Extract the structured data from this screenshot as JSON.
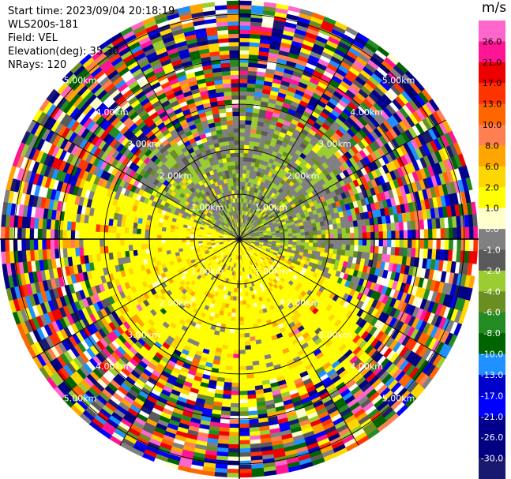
{
  "header": {
    "start_time": "Start time: 2023/09/04 20:18:19",
    "instrument": "WLS200s-181",
    "field": "Field: VEL",
    "elevation": "Elevation(deg): 35.30",
    "nrays": "NRays: 120"
  },
  "chart_data": {
    "type": "heatmap",
    "projection": "polar-ppi",
    "field": "VEL",
    "units": "m/s",
    "n_rays": 120,
    "elevation_deg": 35.3,
    "range_rings_km": [
      1,
      2,
      3,
      4,
      5
    ],
    "range_ring_labels": [
      "1.00km",
      "2.00km",
      "3.00km",
      "4.00km",
      "5.00km"
    ],
    "colorbar": {
      "title": "m/s",
      "ticks": [
        "26.0",
        "21.0",
        "17.0",
        "13.0",
        "10.0",
        "8.0",
        "6.0",
        "2.0",
        "1.0",
        "0.0",
        "-1.0",
        "-2.0",
        "-4.0",
        "-6.0",
        "-8.0",
        "-10.0",
        "-13.0",
        "-17.0",
        "-21.0",
        "-26.0",
        "-30.0"
      ],
      "colors": [
        "#ff66cc",
        "#ff1493",
        "#ee0000",
        "#ff3300",
        "#ff6600",
        "#ff7f50",
        "#ffa500",
        "#ffd700",
        "#ffff00",
        "#ffffcc",
        "#808080",
        "#5a5a5a",
        "#9acd32",
        "#6b8e23",
        "#228b22",
        "#006400",
        "#1e90ff",
        "#0000cd",
        "#0000ff",
        "#00008b",
        "#000080",
        "#191970"
      ]
    },
    "pattern": {
      "inner_near_zero_km": 2.7,
      "north_sector": "gray and yellow-green (approx -2 to 0 m/s)",
      "south_sector": "yellow (approx 1 to 2 m/s)",
      "outer": "noisy, all colors"
    }
  }
}
